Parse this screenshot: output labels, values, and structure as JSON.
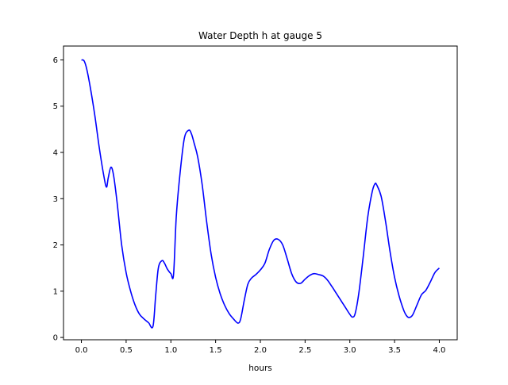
{
  "chart_data": {
    "type": "line",
    "title": "Water Depth h at gauge 5",
    "xlabel": "hours",
    "ylabel": "",
    "xlim": [
      -0.2,
      4.2
    ],
    "ylim": [
      -0.05,
      6.3
    ],
    "xticks": [
      0.0,
      0.5,
      1.0,
      1.5,
      2.0,
      2.5,
      3.0,
      3.5,
      4.0
    ],
    "xtick_labels": [
      "0.0",
      "0.5",
      "1.0",
      "1.5",
      "2.0",
      "2.5",
      "3.0",
      "3.5",
      "4.0"
    ],
    "yticks": [
      0,
      1,
      2,
      3,
      4,
      5,
      6
    ],
    "ytick_labels": [
      "0",
      "1",
      "2",
      "3",
      "4",
      "5",
      "6"
    ],
    "grid": false,
    "series": [
      {
        "color": "#0000ff",
        "x": [
          0.0,
          0.03,
          0.06,
          0.1,
          0.15,
          0.2,
          0.25,
          0.28,
          0.3,
          0.33,
          0.36,
          0.4,
          0.45,
          0.5,
          0.55,
          0.6,
          0.65,
          0.7,
          0.75,
          0.8,
          0.83,
          0.86,
          0.9,
          0.93,
          0.96,
          1.0,
          1.03,
          1.06,
          1.1,
          1.15,
          1.2,
          1.23,
          1.26,
          1.3,
          1.35,
          1.4,
          1.45,
          1.5,
          1.55,
          1.6,
          1.65,
          1.7,
          1.75,
          1.78,
          1.82,
          1.86,
          1.9,
          1.95,
          2.0,
          2.05,
          2.1,
          2.15,
          2.2,
          2.25,
          2.3,
          2.35,
          2.4,
          2.45,
          2.5,
          2.55,
          2.6,
          2.65,
          2.7,
          2.75,
          2.8,
          2.85,
          2.9,
          2.95,
          3.0,
          3.03,
          3.06,
          3.1,
          3.15,
          3.2,
          3.25,
          3.28,
          3.3,
          3.35,
          3.4,
          3.45,
          3.5,
          3.55,
          3.6,
          3.63,
          3.66,
          3.7,
          3.75,
          3.8,
          3.85,
          3.9,
          3.95,
          4.0
        ],
        "y": [
          6.0,
          5.98,
          5.8,
          5.4,
          4.8,
          4.1,
          3.5,
          3.25,
          3.45,
          3.68,
          3.5,
          2.9,
          2.0,
          1.4,
          1.0,
          0.7,
          0.5,
          0.4,
          0.32,
          0.24,
          0.9,
          1.5,
          1.66,
          1.6,
          1.48,
          1.38,
          1.36,
          2.6,
          3.5,
          4.3,
          4.48,
          4.4,
          4.2,
          3.9,
          3.3,
          2.5,
          1.8,
          1.3,
          0.95,
          0.7,
          0.52,
          0.4,
          0.31,
          0.4,
          0.8,
          1.15,
          1.28,
          1.36,
          1.46,
          1.6,
          1.9,
          2.1,
          2.12,
          2.0,
          1.7,
          1.38,
          1.2,
          1.17,
          1.26,
          1.34,
          1.38,
          1.36,
          1.33,
          1.24,
          1.1,
          0.95,
          0.8,
          0.65,
          0.5,
          0.44,
          0.52,
          0.95,
          1.75,
          2.6,
          3.15,
          3.32,
          3.3,
          3.05,
          2.5,
          1.85,
          1.3,
          0.9,
          0.6,
          0.48,
          0.43,
          0.48,
          0.7,
          0.92,
          1.02,
          1.2,
          1.4,
          1.5
        ]
      }
    ]
  }
}
